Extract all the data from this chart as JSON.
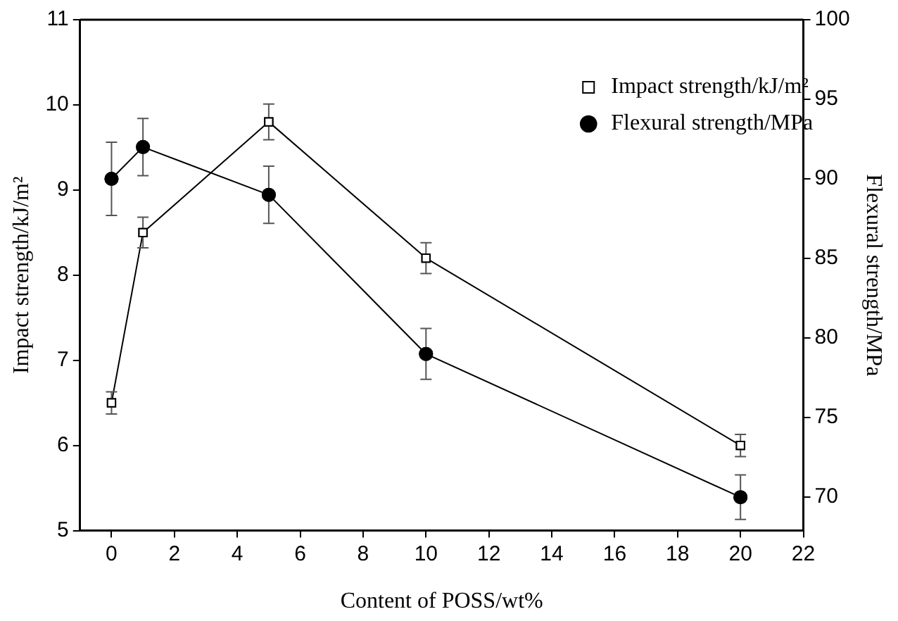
{
  "chart_data": {
    "type": "line",
    "xlabel": "Content of POSS/wt%",
    "ylabel": "Impact strength/kJ/m²",
    "y2label": "Flexural strength/MPa",
    "x": [
      0,
      1,
      5,
      10,
      20
    ],
    "series": [
      {
        "name": "Impact strength/kJ/m²",
        "color": "#000000",
        "marker": "square",
        "values": [
          6.5,
          8.5,
          9.8,
          8.2,
          6.0
        ],
        "errors": [
          0.13,
          0.18,
          0.21,
          0.18,
          0.13
        ]
      },
      {
        "name": "Flexural strength/MPa",
        "color": "#000000",
        "marker": "circle",
        "axis": "y2",
        "values": [
          90,
          92,
          89,
          79,
          70
        ],
        "errors": [
          2.3,
          1.8,
          1.8,
          1.6,
          1.4
        ]
      }
    ],
    "xlim": [
      -1,
      22
    ],
    "xticks": [
      0,
      2,
      4,
      6,
      8,
      10,
      12,
      14,
      16,
      18,
      20,
      22
    ],
    "ylim": [
      5,
      11
    ],
    "yticks": [
      5,
      6,
      7,
      8,
      9,
      10,
      11
    ],
    "y2lim": [
      67.9,
      100
    ],
    "y2ticks": [
      70,
      75,
      80,
      85,
      90,
      95,
      100
    ],
    "legend": "top right",
    "grid": false,
    "line_style": "solid"
  }
}
